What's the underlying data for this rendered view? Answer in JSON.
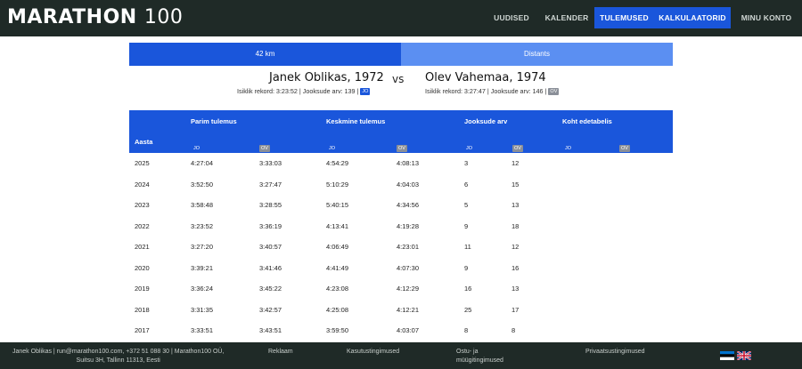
{
  "header": {
    "logo_word": "MARATHON",
    "logo_num": "100",
    "nav": [
      {
        "label": "UUDISED"
      },
      {
        "label": "KALENDER"
      },
      {
        "label": "TULEMUSED"
      },
      {
        "label": "KALKULAATORID"
      },
      {
        "label": "MINU KONTO"
      }
    ]
  },
  "tabs": [
    {
      "label": "42 km"
    },
    {
      "label": "Distants"
    }
  ],
  "runner_a": {
    "name": "Janek Oblikas, 1972",
    "record_label": "Isiklik rekord: 3:23:52",
    "count_label": "Jooksude arv: 139",
    "badge": "JO"
  },
  "vs_label": "vs",
  "runner_b": {
    "name": "Olev Vahemaa, 1974",
    "record_label": "Isiklik rekord: 3:27:47",
    "count_label": "Jooksude arv: 146",
    "badge": "OV"
  },
  "table": {
    "year_header": "Aasta",
    "groups": [
      "Parim tulemus",
      "Keskmine tulemus",
      "Jooksude arv",
      "Koht edetabelis"
    ],
    "sub_a": "JO",
    "sub_b": "OV",
    "rows": [
      {
        "year": "2025",
        "best_a": "4:27:04",
        "best_b": "3:33:03",
        "avg_a": "4:54:29",
        "avg_b": "4:08:13",
        "cnt_a": "3",
        "cnt_b": "12"
      },
      {
        "year": "2024",
        "best_a": "3:52:50",
        "best_b": "3:27:47",
        "avg_a": "5:10:29",
        "avg_b": "4:04:03",
        "cnt_a": "6",
        "cnt_b": "15"
      },
      {
        "year": "2023",
        "best_a": "3:58:48",
        "best_b": "3:28:55",
        "avg_a": "5:40:15",
        "avg_b": "4:34:56",
        "cnt_a": "5",
        "cnt_b": "13"
      },
      {
        "year": "2022",
        "best_a": "3:23:52",
        "best_b": "3:36:19",
        "avg_a": "4:13:41",
        "avg_b": "4:19:28",
        "cnt_a": "9",
        "cnt_b": "18"
      },
      {
        "year": "2021",
        "best_a": "3:27:20",
        "best_b": "3:40:57",
        "avg_a": "4:06:49",
        "avg_b": "4:23:01",
        "cnt_a": "11",
        "cnt_b": "12"
      },
      {
        "year": "2020",
        "best_a": "3:39:21",
        "best_b": "3:41:46",
        "avg_a": "4:41:49",
        "avg_b": "4:07:30",
        "cnt_a": "9",
        "cnt_b": "16"
      },
      {
        "year": "2019",
        "best_a": "3:36:24",
        "best_b": "3:45:22",
        "avg_a": "4:23:08",
        "avg_b": "4:12:29",
        "cnt_a": "16",
        "cnt_b": "13"
      },
      {
        "year": "2018",
        "best_a": "3:31:35",
        "best_b": "3:42:57",
        "avg_a": "4:25:08",
        "avg_b": "4:12:21",
        "cnt_a": "25",
        "cnt_b": "17"
      },
      {
        "year": "2017",
        "best_a": "3:33:51",
        "best_b": "3:43:51",
        "avg_a": "3:59:50",
        "avg_b": "4:03:07",
        "cnt_a": "8",
        "cnt_b": "8"
      }
    ]
  },
  "footer": {
    "address_line1": "Janek Oblikas | run@marathon100.com, +372 51 088 30 | Marathon100 OÜ,",
    "address_line2": "Suitsu 3H, Tallinn 11313, Eesti",
    "links": [
      {
        "label": "Reklaam"
      },
      {
        "label": "Kasutustingimused"
      },
      {
        "label": "Ostu- ja müügitingimused"
      },
      {
        "label": "Privaatsustingimused"
      }
    ],
    "colors": {
      "ee_blue": "#0072ce",
      "ee_black": "#000000",
      "ee_white": "#ffffff"
    }
  },
  "colors": {
    "accent": "#1a56db",
    "tab_inactive": "#5b8ff2",
    "bar_bg": "#1f2a27",
    "badge_ov": "#8a8f98"
  }
}
